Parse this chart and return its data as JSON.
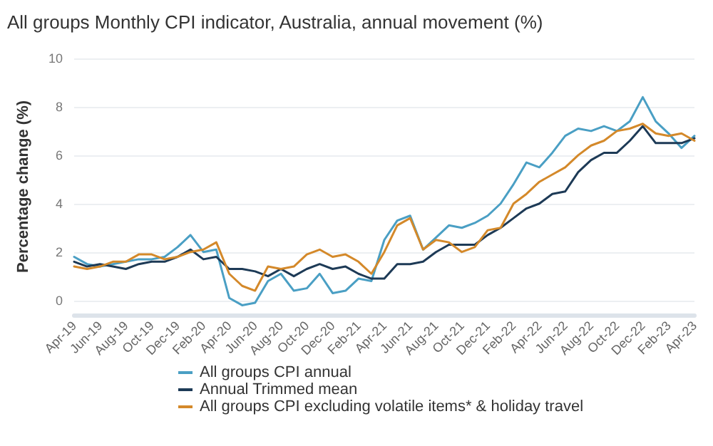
{
  "chart_data": {
    "type": "line",
    "title": "All groups Monthly CPI indicator, Australia, annual movement (%)",
    "ylabel": "Percentage change (%)",
    "categories": [
      "Apr-19",
      null,
      "Jun-19",
      null,
      "Aug-19",
      null,
      "Oct-19",
      null,
      "Dec-19",
      null,
      "Feb-20",
      null,
      "Apr-20",
      null,
      "Jun-20",
      null,
      "Aug-20",
      null,
      "Oct-20",
      null,
      "Dec-20",
      null,
      "Feb-21",
      null,
      "Apr-21",
      null,
      "Jun-21",
      null,
      "Aug-21",
      null,
      "Oct-21",
      null,
      "Dec-21",
      null,
      "Feb-22",
      null,
      "Apr-22",
      null,
      "Jun-22",
      null,
      "Aug-22",
      null,
      "Oct-22",
      null,
      "Dec-22",
      null,
      "Feb-23",
      null,
      "Apr-23"
    ],
    "series": [
      {
        "name": "All groups CPI annual",
        "color": "#4a9fc4",
        "values": [
          1.8,
          1.5,
          1.4,
          1.5,
          1.6,
          1.7,
          1.7,
          1.8,
          2.2,
          2.7,
          2.0,
          2.1,
          0.1,
          -0.2,
          -0.1,
          0.8,
          1.1,
          0.4,
          0.5,
          1.1,
          0.3,
          0.4,
          0.9,
          0.8,
          2.5,
          3.3,
          3.5,
          2.1,
          2.6,
          3.1,
          3.0,
          3.2,
          3.5,
          4.0,
          4.8,
          5.7,
          5.5,
          6.1,
          6.8,
          7.1,
          7.0,
          7.2,
          7.0,
          7.4,
          8.4,
          7.4,
          6.9,
          6.3,
          6.8
        ]
      },
      {
        "name": "Annual Trimmed mean",
        "color": "#1d3a56",
        "values": [
          1.6,
          1.4,
          1.5,
          1.4,
          1.3,
          1.5,
          1.6,
          1.6,
          1.8,
          2.1,
          1.7,
          1.8,
          1.3,
          1.3,
          1.2,
          1.0,
          1.3,
          1.0,
          1.3,
          1.5,
          1.3,
          1.4,
          1.1,
          0.9,
          0.9,
          1.5,
          1.5,
          1.6,
          2.0,
          2.3,
          2.3,
          2.3,
          2.7,
          3.0,
          3.4,
          3.8,
          4.0,
          4.4,
          4.5,
          5.3,
          5.8,
          6.1,
          6.1,
          6.6,
          7.2,
          6.5,
          6.5,
          6.5,
          6.7
        ]
      },
      {
        "name": "All groups CPI excluding volatile items* & holiday travel",
        "color": "#d4892a",
        "values": [
          1.4,
          1.3,
          1.4,
          1.6,
          1.6,
          1.9,
          1.9,
          1.7,
          1.8,
          2.0,
          2.1,
          2.4,
          1.1,
          0.6,
          0.4,
          1.4,
          1.3,
          1.4,
          1.9,
          2.1,
          1.8,
          1.9,
          1.6,
          1.1,
          2.0,
          3.1,
          3.4,
          2.1,
          2.5,
          2.4,
          2.0,
          2.2,
          2.9,
          3.0,
          4.0,
          4.4,
          4.9,
          5.2,
          5.5,
          6.0,
          6.4,
          6.6,
          7.0,
          7.1,
          7.3,
          6.9,
          6.8,
          6.9,
          6.6
        ]
      }
    ],
    "ylim": [
      -0.6,
      10
    ],
    "yticks": [
      0,
      2,
      4,
      6,
      8,
      10
    ],
    "grid": "y",
    "legend": "bottom",
    "marker": "none",
    "line_style": "solid"
  }
}
